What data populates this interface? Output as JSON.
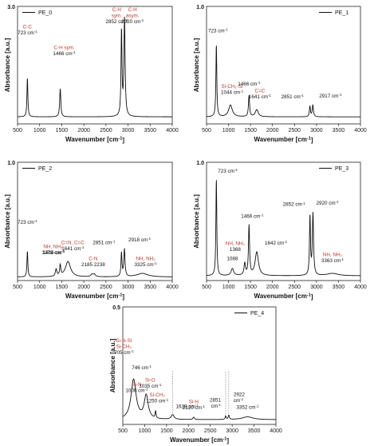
{
  "chart_data": [
    {
      "type": "line",
      "legend": "PE_0",
      "xlabel": "Wavenumber [cm⁻¹]",
      "ylabel": "Absorbance [a.u.]",
      "xlim": [
        500,
        4000
      ],
      "xticks": [
        500,
        1000,
        1500,
        2000,
        2500,
        3000,
        3500,
        4000
      ],
      "ylim": [
        0,
        3.0
      ],
      "ymax_label": "3.0",
      "baseline": 0.18,
      "peaks": [
        {
          "x": 723,
          "h": 1.0,
          "w": 12
        },
        {
          "x": 1466,
          "h": 0.72,
          "w": 15
        },
        {
          "x": 2852,
          "h": 2.18,
          "w": 13
        },
        {
          "x": 2920,
          "h": 2.48,
          "w": 16
        }
      ],
      "annotations": [
        {
          "x": 723,
          "lines": [
            {
              "text": "C-C",
              "color": "red"
            },
            {
              "text": "723 cm⁻¹",
              "color": "black"
            }
          ]
        },
        {
          "x": 1466,
          "lines": [
            {
              "text": "C-H sym.",
              "color": "red"
            },
            {
              "text": "1466 cm⁻¹",
              "color": "black"
            }
          ]
        },
        {
          "x": 2852,
          "lines": [
            {
              "text": "C-H",
              "color": "red"
            },
            {
              "text": "sym.",
              "color": "red"
            },
            {
              "text": "2852 cm⁻¹",
              "color": "black"
            }
          ]
        },
        {
          "x": 2920,
          "lines": [
            {
              "text": "C-H",
              "color": "red"
            },
            {
              "text": "asym.",
              "color": "red"
            },
            {
              "text": "2920 cm⁻¹",
              "color": "black"
            }
          ]
        }
      ]
    },
    {
      "type": "line",
      "legend": "PE_1",
      "xlabel": "Wavenumber [cm⁻¹]",
      "ylabel": "Absorbance [a.u.]",
      "xlim": [
        500,
        4000
      ],
      "xticks": [
        500,
        1000,
        1500,
        2000,
        2500,
        3000,
        3500,
        4000
      ],
      "ylim": [
        0,
        1.0
      ],
      "ymax_label": "1.0",
      "baseline": 0.06,
      "peaks": [
        {
          "x": 723,
          "h": 0.62,
          "w": 12
        },
        {
          "x": 1044,
          "h": 0.1,
          "w": 50
        },
        {
          "x": 1466,
          "h": 0.18,
          "w": 15
        },
        {
          "x": 1641,
          "h": 0.06,
          "w": 40
        },
        {
          "x": 2851,
          "h": 0.09,
          "w": 13
        },
        {
          "x": 2917,
          "h": 0.1,
          "w": 16
        }
      ],
      "annotations": [
        {
          "x": 723,
          "lines": [
            {
              "text": "723 cm⁻¹",
              "color": "black"
            }
          ]
        },
        {
          "x": 1044,
          "lines": [
            {
              "text": "Si-CH₂-Si",
              "color": "red"
            },
            {
              "text": "1044 cm⁻¹",
              "color": "black"
            }
          ]
        },
        {
          "x": 1466,
          "lines": [
            {
              "text": "1466 cm⁻¹",
              "color": "black"
            }
          ]
        },
        {
          "x": 1641,
          "lines": [
            {
              "text": "C=C",
              "color": "red"
            },
            {
              "text": "1641 cm⁻¹",
              "color": "black"
            }
          ]
        },
        {
          "x": 2851,
          "lines": [
            {
              "text": "2851 cm⁻¹",
              "color": "black"
            }
          ]
        },
        {
          "x": 2917,
          "lines": [
            {
              "text": "2917 cm⁻¹",
              "color": "black"
            }
          ]
        }
      ]
    },
    {
      "type": "line",
      "legend": "PE_2",
      "xlabel": "Wavenumber [cm⁻¹]",
      "ylabel": "Absorbance [a.u.]",
      "xlim": [
        500,
        4000
      ],
      "xticks": [
        500,
        1000,
        1500,
        2000,
        2500,
        3000,
        3500,
        4000
      ],
      "ylim": [
        0,
        1.0
      ],
      "ymax_label": "1.0",
      "baseline": 0.03,
      "peaks": [
        {
          "x": 723,
          "h": 0.22,
          "w": 12
        },
        {
          "x": 1373,
          "h": 0.06,
          "w": 20
        },
        {
          "x": 1466,
          "h": 0.09,
          "w": 15
        },
        {
          "x": 1641,
          "h": 0.13,
          "w": 70
        },
        {
          "x": 2185,
          "h": 0.02,
          "w": 30
        },
        {
          "x": 2238,
          "h": 0.02,
          "w": 30
        },
        {
          "x": 2851,
          "h": 0.2,
          "w": 13
        },
        {
          "x": 2918,
          "h": 0.23,
          "w": 16
        },
        {
          "x": 3325,
          "h": 0.03,
          "w": 150
        }
      ],
      "annotations": [
        {
          "x": 723,
          "lines": [
            {
              "text": "723 cm⁻¹",
              "color": "black"
            }
          ]
        },
        {
          "x": 1373,
          "lines": [
            {
              "text": "NH, NH₂",
              "color": "red"
            },
            {
              "text": "1373 cm⁻¹",
              "color": "black"
            }
          ]
        },
        {
          "x": 1466,
          "lines": [
            {
              "text": "1466 cm⁻¹",
              "color": "black"
            }
          ]
        },
        {
          "x": 1641,
          "lines": [
            {
              "text": "C=N, C=C",
              "color": "red"
            },
            {
              "text": "1641 cm⁻¹",
              "color": "black"
            }
          ]
        },
        {
          "x": 2212,
          "lines": [
            {
              "text": "C-N",
              "color": "red"
            },
            {
              "text": "2185  2238",
              "color": "black"
            }
          ]
        },
        {
          "x": 2851,
          "lines": [
            {
              "text": "2851 cm⁻¹",
              "color": "black"
            }
          ]
        },
        {
          "x": 2918,
          "lines": [
            {
              "text": "2918 cm⁻¹",
              "color": "black"
            }
          ]
        },
        {
          "x": 3325,
          "lines": [
            {
              "text": "NH, NH₂",
              "color": "red"
            },
            {
              "text": "3325 cm⁻¹",
              "color": "black"
            }
          ]
        }
      ]
    },
    {
      "type": "line",
      "legend": "PE_3",
      "xlabel": "Wavenumber [cm⁻¹]",
      "ylabel": "Absorbance [a.u.]",
      "xlim": [
        500,
        4000
      ],
      "xticks": [
        500,
        1000,
        1500,
        2000,
        2500,
        3000,
        3500,
        4000
      ],
      "ylim": [
        0,
        1.0
      ],
      "ymax_label": "1.0",
      "baseline": 0.04,
      "peaks": [
        {
          "x": 723,
          "h": 0.83,
          "w": 12
        },
        {
          "x": 1088,
          "h": 0.06,
          "w": 35
        },
        {
          "x": 1368,
          "h": 0.1,
          "w": 20
        },
        {
          "x": 1466,
          "h": 0.42,
          "w": 15
        },
        {
          "x": 1642,
          "h": 0.2,
          "w": 45
        },
        {
          "x": 2852,
          "h": 0.5,
          "w": 13
        },
        {
          "x": 2920,
          "h": 0.52,
          "w": 16
        },
        {
          "x": 3363,
          "h": 0.02,
          "w": 150
        }
      ],
      "annotations": [
        {
          "x": 723,
          "lines": [
            {
              "text": "723 cm⁻¹",
              "color": "black"
            }
          ]
        },
        {
          "x": 1088,
          "lines": [
            {
              "text": "1088",
              "color": "black"
            }
          ]
        },
        {
          "x": 1368,
          "lines": [
            {
              "text": "NH, NH₂",
              "color": "red"
            },
            {
              "text": "1368",
              "color": "black"
            }
          ]
        },
        {
          "x": 1466,
          "lines": [
            {
              "text": "1466 cm⁻¹",
              "color": "black"
            }
          ]
        },
        {
          "x": 1642,
          "lines": [
            {
              "text": "1642 cm⁻¹",
              "color": "black"
            }
          ]
        },
        {
          "x": 2852,
          "lines": [
            {
              "text": "2852 cm⁻¹",
              "color": "black"
            }
          ]
        },
        {
          "x": 2920,
          "lines": [
            {
              "text": "2920 cm⁻¹",
              "color": "black"
            }
          ]
        },
        {
          "x": 3363,
          "lines": [
            {
              "text": "NH, NH₂",
              "color": "red"
            },
            {
              "text": "3363 cm⁻¹",
              "color": "black"
            }
          ]
        }
      ]
    },
    {
      "type": "line",
      "legend": "PE_4",
      "xlabel": "Wavenumber [cm⁻¹]",
      "ylabel": "Absorbance [a.u.]",
      "xlim": [
        500,
        4000
      ],
      "xticks": [
        500,
        1000,
        1500,
        2000,
        2500,
        3000,
        3500,
        4000
      ],
      "ylim": [
        0,
        0.5
      ],
      "ymax_label": "0.5",
      "baseline": 0.02,
      "peaks": [
        {
          "x": 746,
          "h": 0.17,
          "w": 70
        },
        {
          "x": 1035,
          "h": 0.1,
          "w": 55
        },
        {
          "x": 1250,
          "h": 0.03,
          "w": 12
        },
        {
          "x": 1639,
          "h": 0.02,
          "w": 40
        },
        {
          "x": 2120,
          "h": 0.01,
          "w": 20
        },
        {
          "x": 2851,
          "h": 0.015,
          "w": 13
        },
        {
          "x": 2922,
          "h": 0.018,
          "w": 16
        },
        {
          "x": 3352,
          "h": 0.012,
          "w": 150
        }
      ],
      "dashed_markers": [
        1639,
        2851,
        2922
      ],
      "annotations": [
        {
          "x": 705,
          "lines": [
            {
              "text": "Si-N-Si",
              "color": "red"
            },
            {
              "text": "Si-CH₃",
              "color": "red"
            },
            {
              "text": "705 cm⁻¹",
              "color": "black"
            }
          ]
        },
        {
          "x": 746,
          "lines": [
            {
              "text": "746 cm⁻¹",
              "color": "black"
            }
          ]
        },
        {
          "x": 1000,
          "lines": [
            {
              "text": "Si-N",
              "color": "red"
            },
            {
              "text": "1000 cm⁻¹",
              "color": "black"
            }
          ]
        },
        {
          "x": 1035,
          "lines": [
            {
              "text": "Si-O",
              "color": "red"
            },
            {
              "text": "1035 cm⁻¹",
              "color": "black"
            }
          ]
        },
        {
          "x": 1250,
          "lines": [
            {
              "text": "Si-CH₃",
              "color": "red"
            },
            {
              "text": "1250 cm⁻¹",
              "color": "black"
            }
          ]
        },
        {
          "x": 1639,
          "lines": [
            {
              "text": "1639 cm⁻¹",
              "color": "black"
            }
          ]
        },
        {
          "x": 2120,
          "lines": [
            {
              "text": "Si-H",
              "color": "red"
            },
            {
              "text": "2120 cm⁻¹",
              "color": "black"
            }
          ]
        },
        {
          "x": 2851,
          "lines": [
            {
              "text": "2851",
              "color": "black"
            },
            {
              "text": "cm⁻¹",
              "color": "black"
            }
          ]
        },
        {
          "x": 2922,
          "lines": [
            {
              "text": "2922",
              "color": "black"
            },
            {
              "text": "cm⁻¹",
              "color": "black"
            }
          ]
        },
        {
          "x": 3352,
          "lines": [
            {
              "text": "3352 cm⁻¹",
              "color": "black"
            }
          ]
        }
      ]
    }
  ]
}
